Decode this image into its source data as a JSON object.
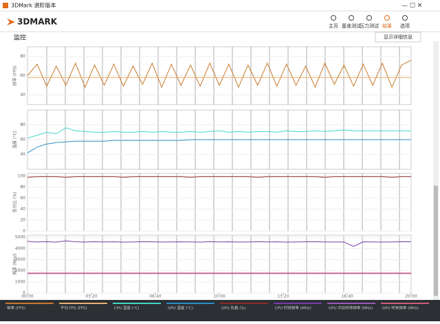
{
  "window": {
    "title": "3DMark 进阶版本"
  },
  "header": {
    "logo": "3DMARK",
    "nav": [
      "主页",
      "基准测试",
      "压力测试",
      "结果",
      "选项"
    ],
    "active": 3
  },
  "section": {
    "title": "监控",
    "button": "显示详细信息"
  },
  "chart_data": [
    {
      "type": "line",
      "y_label": "帧率 (FPS)",
      "ylim": [
        30,
        90
      ],
      "yticks": [
        40,
        60,
        80
      ],
      "xlim": [
        0,
        1200
      ],
      "x": [
        0,
        30,
        60,
        90,
        120,
        150,
        180,
        210,
        240,
        270,
        300,
        330,
        360,
        390,
        420,
        450,
        480,
        510,
        540,
        570,
        600,
        630,
        660,
        690,
        720,
        750,
        780,
        810,
        840,
        870,
        900,
        930,
        960,
        990,
        1020,
        1050,
        1080,
        1110,
        1140,
        1170,
        1200
      ],
      "series": [
        {
          "name": "帧率 (FPS)",
          "color": "#c8782a",
          "values": [
            60,
            72,
            49,
            70,
            50,
            73,
            48,
            71,
            50,
            72,
            49,
            70,
            51,
            73,
            48,
            72,
            50,
            71,
            49,
            73,
            50,
            72,
            48,
            71,
            50,
            73,
            49,
            72,
            50,
            70,
            48,
            73,
            51,
            71,
            49,
            72,
            50,
            73,
            48,
            71,
            76
          ]
        },
        {
          "name": "平均 FPS (FPS)",
          "color": "#e8b070",
          "values": [
            58,
            58,
            58,
            58,
            58,
            58,
            58,
            58,
            58,
            58,
            58,
            58,
            58,
            58,
            58,
            58,
            58,
            58,
            58,
            58,
            58,
            58,
            58,
            58,
            58,
            58,
            58,
            58,
            58,
            58,
            58,
            58,
            58,
            58,
            58,
            58,
            58,
            58,
            58,
            58,
            58
          ]
        }
      ]
    },
    {
      "type": "line",
      "y_label": "温度 (°C)",
      "ylim": [
        20,
        100
      ],
      "yticks": [
        40,
        60,
        80
      ],
      "xlim": [
        0,
        1200
      ],
      "x": [
        0,
        30,
        60,
        90,
        120,
        150,
        180,
        210,
        240,
        270,
        300,
        330,
        360,
        390,
        420,
        450,
        480,
        510,
        540,
        570,
        600,
        630,
        660,
        690,
        720,
        750,
        780,
        810,
        840,
        870,
        900,
        930,
        960,
        990,
        1020,
        1050,
        1080,
        1110,
        1140,
        1170,
        1200
      ],
      "series": [
        {
          "name": "CPU 温度 (°C)",
          "color": "#3fd6c8",
          "values": [
            62,
            66,
            70,
            68,
            76,
            72,
            71,
            70,
            70,
            71,
            70,
            70,
            71,
            70,
            71,
            70,
            70,
            71,
            70,
            71,
            72,
            70,
            71,
            70,
            71,
            71,
            70,
            72,
            71,
            71,
            72,
            71,
            72,
            73,
            72,
            72,
            72,
            72,
            72,
            72,
            72
          ]
        },
        {
          "name": "GPU 温度 (°C)",
          "color": "#2a8ec8",
          "values": [
            42,
            50,
            54,
            56,
            57,
            58,
            58,
            58,
            58,
            59,
            59,
            59,
            59,
            59,
            59,
            59,
            59,
            60,
            60,
            60,
            60,
            60,
            60,
            60,
            60,
            60,
            60,
            60,
            60,
            60,
            60,
            60,
            60,
            60,
            60,
            60,
            60,
            60,
            60,
            60,
            60
          ]
        }
      ]
    },
    {
      "type": "line",
      "y_label": "百分比 (%)",
      "ylim": [
        0,
        105
      ],
      "yticks": [
        0,
        20,
        40,
        60,
        80,
        100
      ],
      "xlim": [
        0,
        1200
      ],
      "x": [
        0,
        30,
        60,
        90,
        120,
        150,
        180,
        210,
        240,
        270,
        300,
        330,
        360,
        390,
        420,
        450,
        480,
        510,
        540,
        570,
        600,
        630,
        660,
        690,
        720,
        750,
        780,
        810,
        840,
        870,
        900,
        930,
        960,
        990,
        1020,
        1050,
        1080,
        1110,
        1140,
        1170,
        1200
      ],
      "series": [
        {
          "name": "GPU 负载 (%)",
          "color": "#8e2a2a",
          "values": [
            98,
            99,
            99,
            99,
            98,
            99,
            99,
            99,
            99,
            99,
            98,
            99,
            99,
            99,
            99,
            99,
            99,
            98,
            99,
            99,
            99,
            99,
            99,
            99,
            98,
            99,
            99,
            99,
            99,
            99,
            99,
            98,
            99,
            99,
            99,
            99,
            99,
            99,
            98,
            99,
            99
          ]
        }
      ]
    },
    {
      "type": "line",
      "y_label": "频率 (MHz)",
      "ylim": [
        0,
        5200
      ],
      "yticks": [
        0,
        1000,
        2000,
        3000,
        4000,
        5000
      ],
      "xlim": [
        0,
        1200
      ],
      "xticks": [
        {
          "value": 0,
          "label": "00:00"
        },
        {
          "value": 200,
          "label": "03:20"
        },
        {
          "value": 400,
          "label": "06:40"
        },
        {
          "value": 600,
          "label": "10:00"
        },
        {
          "value": 800,
          "label": "13:20"
        },
        {
          "value": 1000,
          "label": "16:40"
        },
        {
          "value": 1200,
          "label": "20:00"
        }
      ],
      "x": [
        0,
        30,
        60,
        90,
        120,
        150,
        180,
        210,
        240,
        270,
        300,
        330,
        360,
        390,
        420,
        450,
        480,
        510,
        540,
        570,
        600,
        630,
        660,
        690,
        720,
        750,
        780,
        810,
        840,
        870,
        900,
        930,
        960,
        990,
        1020,
        1050,
        1080,
        1110,
        1140,
        1170,
        1200
      ],
      "series": [
        {
          "name": "CPU 时钟频率 (MHz)",
          "color": "#7a3aa8",
          "values": [
            4650,
            4600,
            4620,
            4580,
            4700,
            4610,
            4590,
            4620,
            4600,
            4610,
            4580,
            4600,
            4620,
            4610,
            4590,
            4600,
            4610,
            4600,
            4580,
            4620,
            4600,
            4610,
            4590,
            4600,
            4620,
            4600,
            4610,
            4580,
            4600,
            4610,
            4620,
            4600,
            4590,
            4600,
            4200,
            4610,
            4600,
            4590,
            4600,
            4620,
            4610
          ]
        },
        {
          "name": "GPU 内存时钟频率 (MHz)",
          "color": "#9a5ab8",
          "values": [
            1750,
            1750,
            1750,
            1750,
            1750,
            1750,
            1750,
            1750,
            1750,
            1750,
            1750,
            1750,
            1750,
            1750,
            1750,
            1750,
            1750,
            1750,
            1750,
            1750,
            1750,
            1750,
            1750,
            1750,
            1750,
            1750,
            1750,
            1750,
            1750,
            1750,
            1750,
            1750,
            1750,
            1750,
            1750,
            1750,
            1750,
            1750,
            1750,
            1750,
            1750
          ]
        },
        {
          "name": "GPU 时钟频率 (MHz)",
          "color": "#d05a78",
          "values": [
            1800,
            1800,
            1800,
            1800,
            1800,
            1800,
            1800,
            1800,
            1800,
            1800,
            1800,
            1800,
            1800,
            1800,
            1800,
            1800,
            1800,
            1800,
            1800,
            1800,
            1800,
            1800,
            1800,
            1800,
            1800,
            1800,
            1800,
            1800,
            1800,
            1800,
            1800,
            1800,
            1800,
            1800,
            1800,
            1800,
            1800,
            1800,
            1800,
            1800,
            1800
          ]
        }
      ]
    }
  ]
}
